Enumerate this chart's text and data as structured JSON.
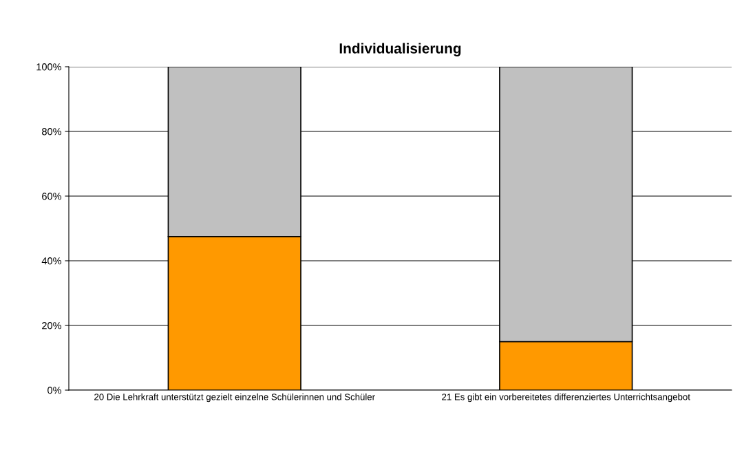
{
  "chart_data": {
    "type": "bar",
    "title": "Individualisierung",
    "stacked": true,
    "categories": [
      "20 Die Lehrkraft unterstützt gezielt einzelne Schülerinnen und Schüler",
      "21 Es gibt ein vorbereitetes differenziertes Unterrichtsangebot"
    ],
    "series": [
      {
        "color": "#ff9900",
        "values": [
          47.5,
          15
        ]
      },
      {
        "color": "#c0c0c0",
        "values": [
          52.5,
          85
        ]
      }
    ],
    "ylim": [
      0,
      100
    ],
    "yticks": [
      {
        "value": 0,
        "label": "0%"
      },
      {
        "value": 20,
        "label": "20%"
      },
      {
        "value": 40,
        "label": "40%"
      },
      {
        "value": 60,
        "label": "60%"
      },
      {
        "value": 80,
        "label": "80%"
      },
      {
        "value": 100,
        "label": "100%"
      }
    ],
    "grid": "y"
  }
}
